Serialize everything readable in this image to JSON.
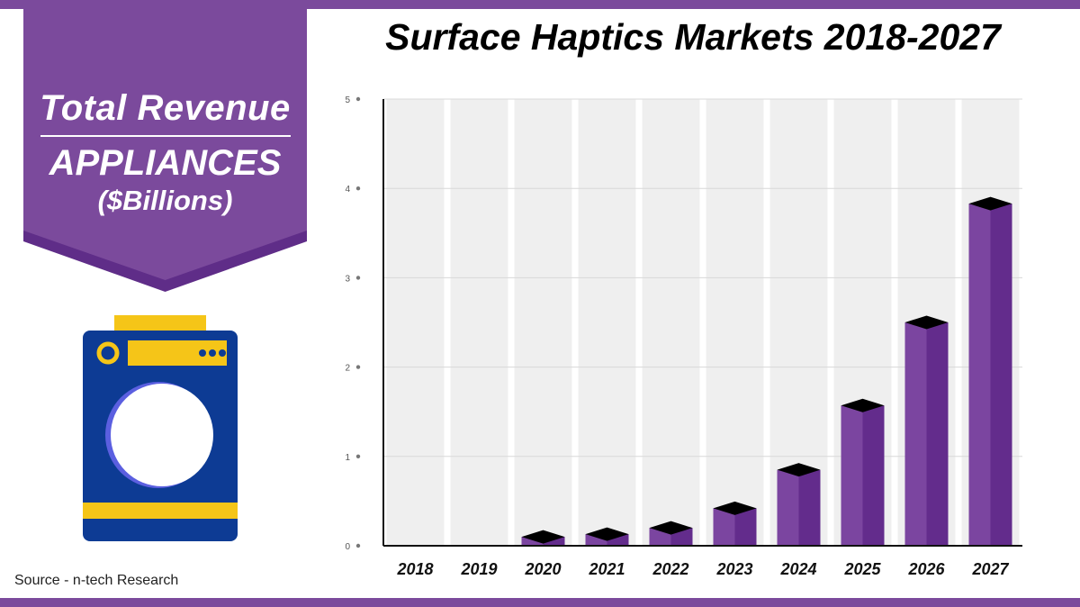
{
  "banner": {
    "line1": "Total Revenue",
    "line2": "APPLIANCES",
    "line3": "($Billions)",
    "icon": "washing-machine-icon"
  },
  "source": "Source - n-tech Research",
  "colors": {
    "accent": "#7b4a9c",
    "bar_front": "#7b45a0",
    "bar_side": "#632c8c",
    "bar_top": "#000000",
    "column_band": "#efefef",
    "washer_body": "#0d3b94",
    "washer_trim": "#f5c518"
  },
  "chart_data": {
    "type": "bar",
    "title": "Surface Haptics Markets 2018-2027",
    "categories": [
      "2018",
      "2019",
      "2020",
      "2021",
      "2022",
      "2023",
      "2024",
      "2025",
      "2026",
      "2027"
    ],
    "values": [
      0,
      0,
      0.1,
      0.13,
      0.2,
      0.42,
      0.85,
      1.57,
      2.5,
      3.83
    ],
    "yticks": [
      "0",
      "1",
      "2",
      "3",
      "4",
      "5"
    ],
    "ylim": [
      0,
      5
    ],
    "xlabel": "",
    "ylabel": "",
    "grid": true
  }
}
